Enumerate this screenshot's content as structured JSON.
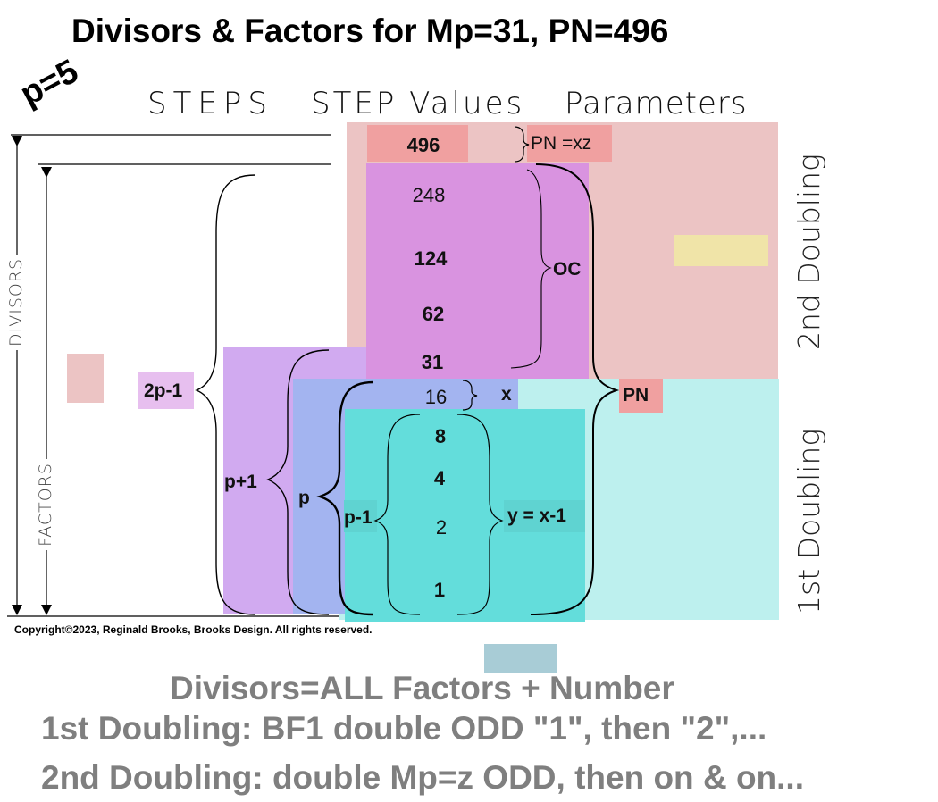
{
  "title": "Divisors & Factors for Mp=31, PN=496",
  "p_label": "p=5",
  "headers": {
    "steps": "STEPS",
    "step_values": "STEP Values",
    "parameters": "Parameters"
  },
  "values": [
    "496",
    "248",
    "124",
    "62",
    "31",
    "16",
    "8",
    "4",
    "2",
    "1"
  ],
  "labels": {
    "pn_xz": "PN =xz",
    "oc": "OC",
    "pn": "PN",
    "x": "x",
    "y": "y = x-1",
    "two_p_minus_1": "2p-1",
    "p_plus_1": "p+1",
    "p": "p",
    "p_minus_1": "p-1",
    "divisors": "DIVISORS",
    "factors": "FACTORS",
    "second_doubling": "2nd Doubling",
    "first_doubling": "1st Doubling"
  },
  "copyright": "Copyright©2023, Reginald Brooks, Brooks Design. All rights reserved.",
  "footer": [
    "Divisors=ALL Factors + Number",
    "1st Doubling: BF1 double ODD \"1\", then \"2\",...",
    "2nd Doubling: double Mp=z ODD, then on & on..."
  ],
  "colors": {
    "pink_region": "#ecc4c4",
    "pn_box": "#f0a0a0",
    "magenta_region": "#d993e0",
    "lavender": "#d1aaf0",
    "blue": "#a3b4f0",
    "cyan_light": "#bdf0ee",
    "cyan": "#63dddb",
    "yellow": "#f0e4a8",
    "steel": "#a8ccd6"
  }
}
